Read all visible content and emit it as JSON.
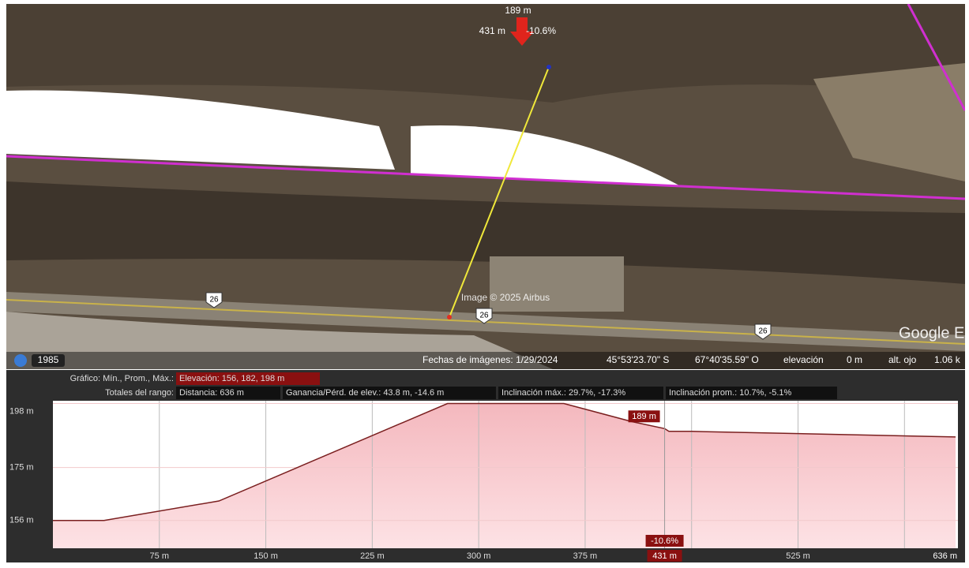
{
  "map": {
    "imagery_credit": "Image © 2025 Airbus",
    "logo": "Google E",
    "history_year": "1985",
    "route_shields": [
      "26",
      "26",
      "26"
    ]
  },
  "status_bar": {
    "image_date": "Fechas de imágenes: 1/29/2024",
    "latitude": "45°53'23.70\" S",
    "longitude": "67°40'35.59\" O",
    "elevation_label": "elevación",
    "elevation_value": "0 m",
    "eye_alt_label": "alt. ojo",
    "eye_alt_value": "1.06 k"
  },
  "profile_header": {
    "chart_label": "Gráfico: Mín., Prom., Máx.:",
    "elevation": "Elevación: 156, 182, 198 m",
    "totals_label": "Totales del rango:",
    "distance": "Distancia: 636 m",
    "gain_loss": "Ganancia/Pérd. de elev.: 43.8 m, -14.6 m",
    "max_slope": "Inclinación máx.: 29.7%, -17.3%",
    "avg_slope": "Inclinación prom.: 10.7%, -5.1%"
  },
  "chart_data": {
    "type": "area",
    "color": "#7a1f1f",
    "x": [
      0,
      36,
      117,
      278,
      360,
      408,
      431,
      434,
      450,
      636
    ],
    "values": [
      156,
      156,
      163,
      198,
      198,
      191.5,
      189,
      188,
      188,
      186
    ],
    "xlim": [
      0,
      636
    ],
    "ylim": [
      146,
      199
    ],
    "xticks": [
      {
        "value": 75,
        "label": "75 m"
      },
      {
        "value": 150,
        "label": "150 m"
      },
      {
        "value": 225,
        "label": "225 m"
      },
      {
        "value": 300,
        "label": "300 m"
      },
      {
        "value": 375,
        "label": "375 m"
      },
      {
        "value": 450,
        "label": null
      },
      {
        "value": 525,
        "label": "525 m"
      },
      {
        "value": 600,
        "label": null
      }
    ],
    "x_end_label": "636 m",
    "yticks": [
      {
        "value": 198,
        "label": "198 m"
      },
      {
        "value": 175,
        "label": "175 m"
      },
      {
        "value": 156,
        "label": "156 m"
      }
    ],
    "grid": true,
    "cursor": {
      "x": 431,
      "x_label": "431 m",
      "value": 189,
      "value_label": "189 m",
      "slope_label": "-10.6%"
    }
  }
}
